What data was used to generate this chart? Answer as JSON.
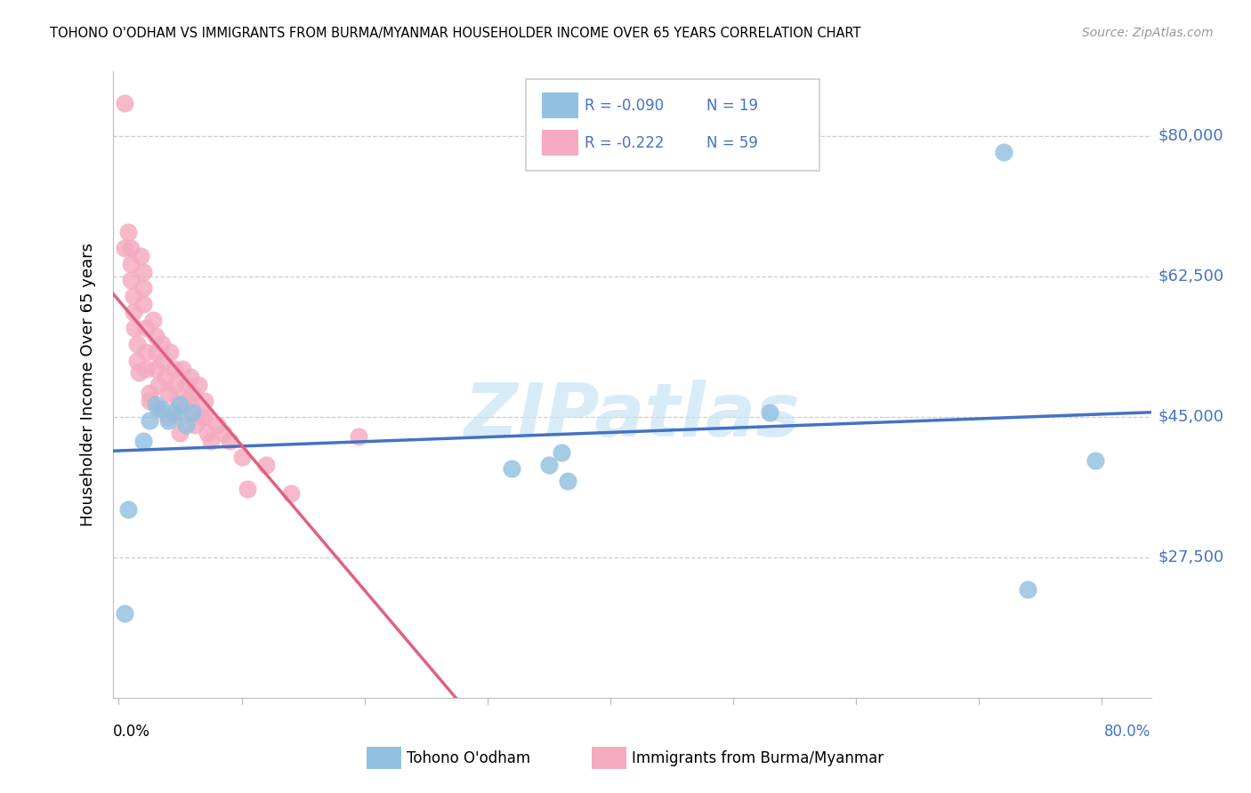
{
  "title": "TOHONO O'ODHAM VS IMMIGRANTS FROM BURMA/MYANMAR HOUSEHOLDER INCOME OVER 65 YEARS CORRELATION CHART",
  "source": "Source: ZipAtlas.com",
  "ylabel": "Householder Income Over 65 years",
  "legend_blue_label": "Tohono O'odham",
  "legend_pink_label": "Immigrants from Burma/Myanmar",
  "legend_blue_R": "-0.090",
  "legend_blue_N": "19",
  "legend_pink_R": "-0.222",
  "legend_pink_N": "59",
  "ytick_labels": [
    "$27,500",
    "$45,000",
    "$62,500",
    "$80,000"
  ],
  "ytick_values": [
    27500,
    45000,
    62500,
    80000
  ],
  "ymin": 10000,
  "ymax": 88000,
  "xmin": -0.005,
  "xmax": 0.84,
  "blue_color": "#92C0E0",
  "blue_line_color": "#4472C4",
  "pink_color": "#F4AABF",
  "pink_line_color": "#E06080",
  "watermark": "ZIPatlas",
  "blue_scatter_x": [
    0.005,
    0.008,
    0.02,
    0.025,
    0.03,
    0.035,
    0.04,
    0.045,
    0.05,
    0.055,
    0.06,
    0.32,
    0.35,
    0.36,
    0.365,
    0.53,
    0.72,
    0.74,
    0.795
  ],
  "blue_scatter_y": [
    20500,
    33500,
    42000,
    44500,
    46500,
    46000,
    44500,
    45500,
    46500,
    44000,
    45500,
    38500,
    39000,
    40500,
    37000,
    45500,
    78000,
    23500,
    39500
  ],
  "pink_scatter_x": [
    0.005,
    0.005,
    0.008,
    0.01,
    0.01,
    0.01,
    0.012,
    0.012,
    0.013,
    0.015,
    0.015,
    0.016,
    0.018,
    0.02,
    0.02,
    0.02,
    0.022,
    0.022,
    0.022,
    0.025,
    0.025,
    0.028,
    0.03,
    0.03,
    0.03,
    0.032,
    0.032,
    0.035,
    0.036,
    0.038,
    0.04,
    0.04,
    0.042,
    0.045,
    0.046,
    0.048,
    0.05,
    0.05,
    0.052,
    0.055,
    0.056,
    0.058,
    0.06,
    0.06,
    0.062,
    0.065,
    0.068,
    0.07,
    0.07,
    0.072,
    0.075,
    0.08,
    0.085,
    0.09,
    0.1,
    0.105,
    0.12,
    0.14,
    0.195
  ],
  "pink_scatter_y": [
    84000,
    66000,
    68000,
    66000,
    64000,
    62000,
    60000,
    58000,
    56000,
    54000,
    52000,
    50500,
    65000,
    63000,
    61000,
    59000,
    56000,
    53000,
    51000,
    48000,
    47000,
    57000,
    55000,
    53000,
    51000,
    49000,
    46000,
    54000,
    52000,
    50000,
    48000,
    45000,
    53000,
    51000,
    49000,
    47000,
    45000,
    43000,
    51000,
    49000,
    47000,
    50000,
    48000,
    46000,
    44000,
    49000,
    45000,
    47000,
    45000,
    43000,
    42000,
    44000,
    43000,
    42000,
    40000,
    36000,
    39000,
    35500,
    42500
  ]
}
